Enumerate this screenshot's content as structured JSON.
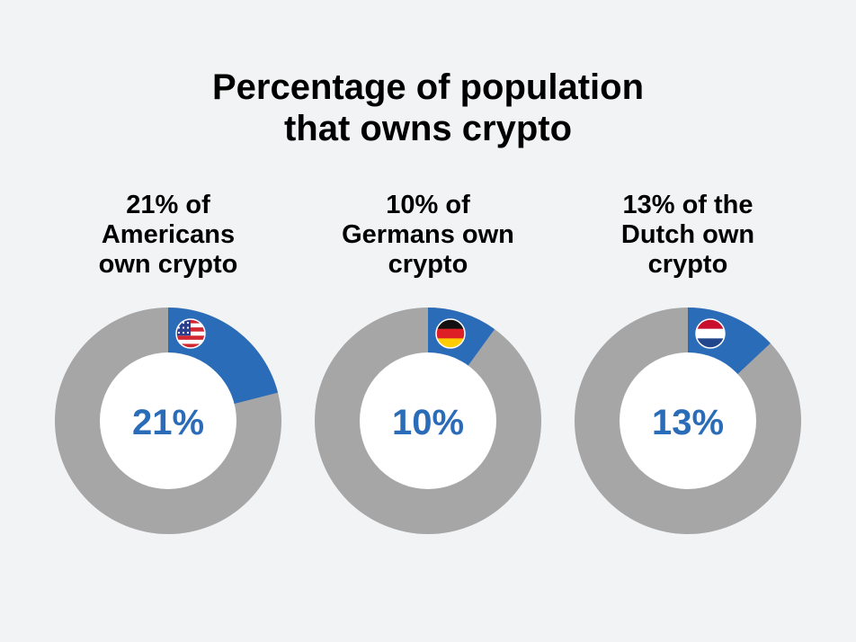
{
  "chart_data": {
    "type": "pie",
    "title_lines": [
      "Percentage of population",
      "that owns crypto"
    ],
    "colors": {
      "share": "#2b6cb8",
      "remainder": "#a6a6a6",
      "hole": "#ffffff",
      "center_text": "#2b6cb8",
      "background": "#f2f3f5"
    },
    "panels": [
      {
        "caption_lines": [
          "21% of",
          "Americans",
          "own crypto"
        ],
        "value": 21,
        "center_label": "21%",
        "flag_icon": "us-flag-icon"
      },
      {
        "caption_lines": [
          "10% of",
          "Germans own",
          "crypto"
        ],
        "value": 10,
        "center_label": "10%",
        "flag_icon": "germany-flag-icon"
      },
      {
        "caption_lines": [
          "13% of the",
          "Dutch own",
          "crypto"
        ],
        "value": 13,
        "center_label": "13%",
        "flag_icon": "netherlands-flag-icon"
      }
    ]
  }
}
